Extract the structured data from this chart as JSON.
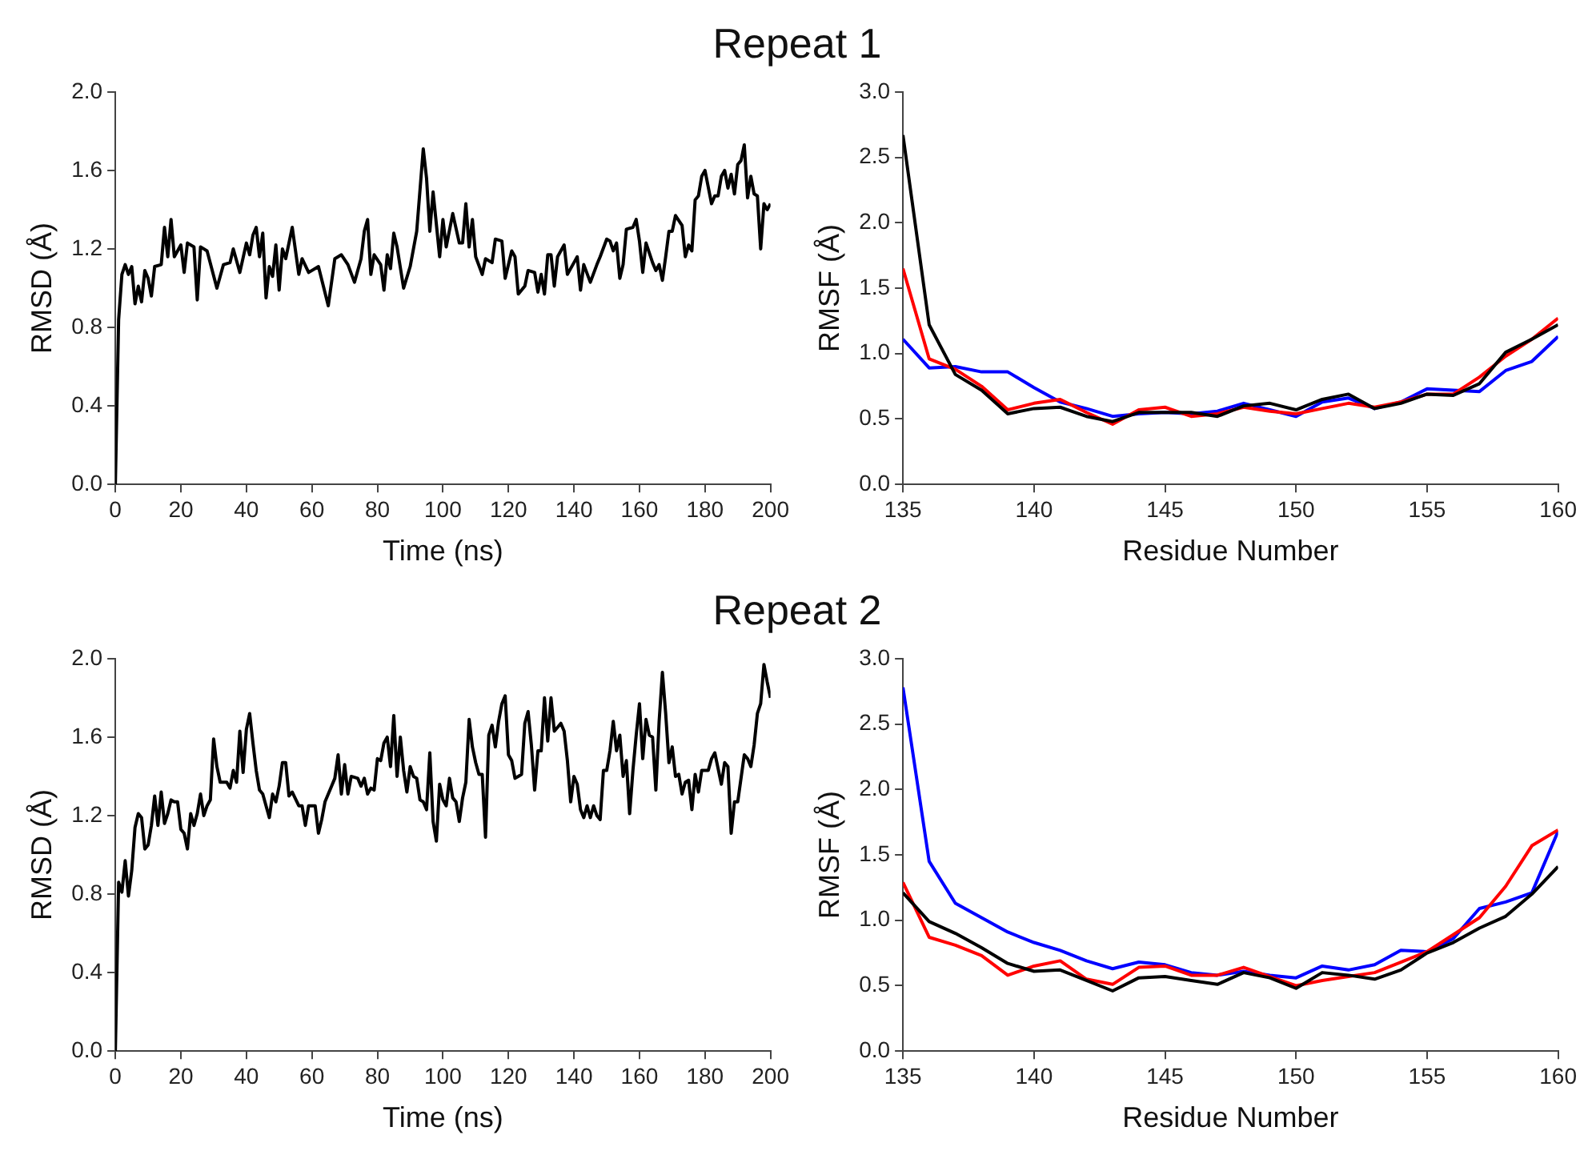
{
  "chart_data": [
    {
      "type": "line",
      "title": "Repeat 1",
      "xlabel": "Time (ns)",
      "ylabel": "RMSD (Å)",
      "xlim": [
        0,
        200
      ],
      "xticks": [
        0,
        20,
        40,
        60,
        80,
        100,
        120,
        140,
        160,
        180,
        200
      ],
      "ylim": [
        0,
        2.0
      ],
      "yticks": [
        {
          "value": 0,
          "label": "0.0"
        },
        0.4,
        0.8,
        1.2,
        1.6,
        {
          "value": 2,
          "label": "2.0"
        }
      ],
      "grid": false,
      "legend": false,
      "marker": "none",
      "color": "#000000",
      "x": [
        0,
        1,
        2,
        3,
        4,
        5,
        6,
        7,
        8,
        9,
        10,
        11,
        12,
        14,
        15,
        16,
        17,
        18,
        20,
        21,
        22,
        24,
        25,
        26,
        28,
        31,
        33,
        35,
        36,
        38,
        40,
        41,
        42,
        43,
        44,
        45,
        46,
        47,
        48,
        49,
        50,
        51,
        52,
        54,
        56,
        57,
        59,
        62,
        65,
        67,
        69,
        71,
        73,
        75,
        76,
        77,
        78,
        79,
        81,
        82,
        83,
        84,
        85,
        86,
        88,
        90,
        92,
        94,
        95,
        96,
        97,
        99,
        100,
        101,
        103,
        105,
        106,
        107,
        108,
        109,
        110,
        112,
        113,
        115,
        116,
        118,
        119,
        121,
        122,
        123,
        125,
        126,
        128,
        129,
        130,
        131,
        132,
        133,
        134,
        135,
        137,
        138,
        140,
        141,
        142,
        143,
        145,
        147,
        148,
        150,
        151,
        152,
        153,
        154,
        155,
        156,
        158,
        159,
        160,
        161,
        162,
        164,
        165,
        166,
        167,
        168,
        169,
        170,
        171,
        173,
        174,
        175,
        176,
        177,
        178,
        179,
        180,
        182,
        183,
        184,
        185,
        186,
        187,
        188,
        189,
        190,
        191,
        192,
        193,
        194,
        195,
        196,
        197,
        198,
        199,
        200
      ],
      "values": [
        0,
        0.84,
        1.07,
        1.12,
        1.07,
        1.11,
        0.92,
        1.01,
        0.93,
        1.09,
        1.05,
        0.96,
        1.11,
        1.12,
        1.31,
        1.16,
        1.35,
        1.16,
        1.22,
        1.08,
        1.23,
        1.21,
        0.94,
        1.21,
        1.19,
        1.0,
        1.12,
        1.13,
        1.2,
        1.08,
        1.23,
        1.17,
        1.27,
        1.31,
        1.16,
        1.28,
        0.95,
        1.11,
        1.06,
        1.22,
        0.99,
        1.2,
        1.15,
        1.31,
        1.07,
        1.15,
        1.08,
        1.11,
        0.91,
        1.15,
        1.17,
        1.12,
        1.03,
        1.15,
        1.29,
        1.35,
        1.07,
        1.17,
        1.12,
        0.99,
        1.17,
        1.1,
        1.28,
        1.21,
        1.0,
        1.11,
        1.29,
        1.71,
        1.56,
        1.29,
        1.49,
        1.16,
        1.35,
        1.21,
        1.38,
        1.23,
        1.23,
        1.43,
        1.21,
        1.35,
        1.16,
        1.07,
        1.15,
        1.13,
        1.25,
        1.24,
        1.05,
        1.19,
        1.16,
        0.97,
        1.01,
        1.09,
        1.08,
        0.98,
        1.07,
        0.97,
        1.17,
        1.17,
        1.01,
        1.16,
        1.22,
        1.07,
        1.13,
        1.16,
        0.99,
        1.12,
        1.03,
        1.12,
        1.16,
        1.25,
        1.24,
        1.19,
        1.23,
        1.05,
        1.12,
        1.3,
        1.31,
        1.35,
        1.24,
        1.08,
        1.23,
        1.13,
        1.09,
        1.12,
        1.04,
        1.16,
        1.29,
        1.29,
        1.37,
        1.32,
        1.16,
        1.22,
        1.19,
        1.45,
        1.47,
        1.57,
        1.6,
        1.43,
        1.47,
        1.47,
        1.57,
        1.6,
        1.51,
        1.58,
        1.48,
        1.63,
        1.65,
        1.73,
        1.46,
        1.57,
        1.48,
        1.47,
        1.2,
        1.43,
        1.4,
        1.43
      ]
    },
    {
      "type": "line",
      "xlabel": "Residue Number",
      "ylabel": "RMSF (Å)",
      "xlim": [
        135,
        160
      ],
      "xticks": [
        135,
        140,
        145,
        150,
        155,
        160
      ],
      "ylim": [
        0,
        3.0
      ],
      "yticks": [
        {
          "value": 0,
          "label": "0.0"
        },
        0.5,
        {
          "value": 1,
          "label": "1.0"
        },
        1.5,
        {
          "value": 2,
          "label": "2.0"
        },
        2.5,
        {
          "value": 3,
          "label": "3.0"
        }
      ],
      "grid": false,
      "legend": false,
      "marker": "none",
      "x": [
        135,
        136,
        137,
        138,
        139,
        140,
        141,
        142,
        143,
        144,
        145,
        146,
        147,
        148,
        149,
        150,
        151,
        152,
        153,
        154,
        155,
        156,
        157,
        158,
        159,
        160
      ],
      "series": [
        {
          "color": "#000000",
          "values": [
            2.67,
            1.22,
            0.84,
            0.72,
            0.54,
            0.58,
            0.59,
            0.52,
            0.48,
            0.55,
            0.55,
            0.55,
            0.52,
            0.6,
            0.62,
            0.57,
            0.65,
            0.69,
            0.58,
            0.62,
            0.69,
            0.68,
            0.77,
            1.01,
            1.11,
            1.22
          ]
        },
        {
          "color": "#ff0000",
          "values": [
            1.65,
            0.96,
            0.88,
            0.75,
            0.57,
            0.62,
            0.65,
            0.55,
            0.46,
            0.57,
            0.59,
            0.52,
            0.54,
            0.59,
            0.56,
            0.54,
            0.58,
            0.62,
            0.59,
            0.63,
            0.69,
            0.69,
            0.82,
            0.98,
            1.11,
            1.27
          ]
        },
        {
          "color": "#0000ff",
          "values": [
            1.11,
            0.89,
            0.9,
            0.86,
            0.86,
            0.74,
            0.63,
            0.58,
            0.52,
            0.54,
            0.55,
            0.54,
            0.56,
            0.62,
            0.57,
            0.52,
            0.63,
            0.66,
            0.58,
            0.63,
            0.73,
            0.72,
            0.71,
            0.87,
            0.94,
            1.13
          ]
        }
      ]
    },
    {
      "type": "line",
      "title": "Repeat 2",
      "xlabel": "Time (ns)",
      "ylabel": "RMSD (Å)",
      "xlim": [
        0,
        200
      ],
      "xticks": [
        0,
        20,
        40,
        60,
        80,
        100,
        120,
        140,
        160,
        180,
        200
      ],
      "ylim": [
        0,
        2.0
      ],
      "yticks": [
        {
          "value": 0,
          "label": "0.0"
        },
        0.4,
        0.8,
        1.2,
        1.6,
        {
          "value": 2,
          "label": "2.0"
        }
      ],
      "grid": false,
      "legend": false,
      "marker": "none",
      "color": "#000000",
      "x": [
        0,
        1,
        2,
        3,
        4,
        5,
        6,
        7,
        8,
        9,
        10,
        11,
        12,
        13,
        14,
        15,
        16,
        17,
        18,
        19,
        20,
        21,
        22,
        23,
        24,
        25,
        26,
        27,
        28,
        29,
        30,
        31,
        32,
        34,
        35,
        36,
        37,
        38,
        39,
        40,
        41,
        42,
        43,
        44,
        45,
        46,
        47,
        48,
        49,
        50,
        51,
        52,
        53,
        54,
        56,
        57,
        58,
        59,
        61,
        62,
        63,
        64,
        66,
        67,
        68,
        69,
        70,
        71,
        72,
        74,
        75,
        76,
        77,
        78,
        79,
        80,
        81,
        82,
        83,
        84,
        85,
        86,
        87,
        88,
        89,
        90,
        91,
        92,
        93,
        94,
        95,
        96,
        97,
        98,
        99,
        100,
        101,
        102,
        103,
        104,
        105,
        106,
        107,
        108,
        109,
        110,
        111,
        112,
        113,
        114,
        115,
        116,
        117,
        118,
        119,
        120,
        121,
        122,
        123,
        124,
        125,
        126,
        127,
        128,
        129,
        130,
        131,
        132,
        133,
        134,
        136,
        137,
        138,
        139,
        140,
        141,
        142,
        143,
        144,
        145,
        146,
        147,
        148,
        149,
        150,
        151,
        152,
        153,
        154,
        155,
        156,
        157,
        158,
        159,
        160,
        161,
        162,
        163,
        164,
        165,
        166,
        167,
        168,
        169,
        170,
        171,
        172,
        173,
        174,
        175,
        176,
        177,
        178,
        179,
        180,
        181,
        182,
        183,
        184,
        185,
        186,
        187,
        188,
        189,
        190,
        191,
        192,
        193,
        194,
        195,
        196,
        197,
        198,
        199,
        200
      ],
      "values": [
        0,
        0.86,
        0.81,
        0.97,
        0.79,
        0.92,
        1.14,
        1.21,
        1.19,
        1.03,
        1.05,
        1.15,
        1.3,
        1.15,
        1.32,
        1.16,
        1.21,
        1.28,
        1.27,
        1.27,
        1.13,
        1.11,
        1.03,
        1.21,
        1.15,
        1.21,
        1.31,
        1.2,
        1.25,
        1.28,
        1.59,
        1.45,
        1.37,
        1.37,
        1.34,
        1.43,
        1.37,
        1.63,
        1.42,
        1.64,
        1.72,
        1.57,
        1.43,
        1.33,
        1.31,
        1.25,
        1.19,
        1.31,
        1.27,
        1.35,
        1.47,
        1.47,
        1.3,
        1.32,
        1.25,
        1.25,
        1.15,
        1.25,
        1.25,
        1.11,
        1.18,
        1.27,
        1.35,
        1.39,
        1.51,
        1.31,
        1.46,
        1.31,
        1.4,
        1.39,
        1.35,
        1.39,
        1.31,
        1.34,
        1.33,
        1.49,
        1.48,
        1.57,
        1.6,
        1.45,
        1.71,
        1.4,
        1.6,
        1.43,
        1.32,
        1.45,
        1.4,
        1.39,
        1.28,
        1.27,
        1.23,
        1.52,
        1.17,
        1.07,
        1.36,
        1.28,
        1.25,
        1.39,
        1.29,
        1.27,
        1.17,
        1.29,
        1.37,
        1.69,
        1.55,
        1.47,
        1.41,
        1.41,
        1.09,
        1.61,
        1.66,
        1.55,
        1.68,
        1.77,
        1.81,
        1.51,
        1.48,
        1.39,
        1.4,
        1.41,
        1.67,
        1.73,
        1.56,
        1.33,
        1.53,
        1.53,
        1.8,
        1.58,
        1.8,
        1.63,
        1.67,
        1.63,
        1.48,
        1.27,
        1.4,
        1.36,
        1.23,
        1.19,
        1.25,
        1.19,
        1.25,
        1.2,
        1.18,
        1.43,
        1.43,
        1.53,
        1.68,
        1.53,
        1.61,
        1.4,
        1.48,
        1.21,
        1.43,
        1.61,
        1.77,
        1.49,
        1.69,
        1.61,
        1.6,
        1.33,
        1.68,
        1.93,
        1.72,
        1.47,
        1.55,
        1.4,
        1.41,
        1.31,
        1.37,
        1.38,
        1.23,
        1.41,
        1.32,
        1.43,
        1.43,
        1.43,
        1.49,
        1.52,
        1.44,
        1.36,
        1.47,
        1.45,
        1.11,
        1.27,
        1.27,
        1.39,
        1.51,
        1.49,
        1.45,
        1.56,
        1.72,
        1.77,
        1.97,
        1.88,
        1.8
      ]
    },
    {
      "type": "line",
      "xlabel": "Residue Number",
      "ylabel": "RMSF (Å)",
      "xlim": [
        135,
        160
      ],
      "xticks": [
        135,
        140,
        145,
        150,
        155,
        160
      ],
      "ylim": [
        0,
        3.0
      ],
      "yticks": [
        {
          "value": 0,
          "label": "0.0"
        },
        0.5,
        {
          "value": 1,
          "label": "1.0"
        },
        1.5,
        {
          "value": 2,
          "label": "2.0"
        },
        2.5,
        {
          "value": 3,
          "label": "3.0"
        }
      ],
      "grid": false,
      "legend": false,
      "marker": "none",
      "x": [
        135,
        136,
        137,
        138,
        139,
        140,
        141,
        142,
        143,
        144,
        145,
        146,
        147,
        148,
        149,
        150,
        151,
        152,
        153,
        154,
        155,
        156,
        157,
        158,
        159,
        160
      ],
      "series": [
        {
          "color": "#000000",
          "values": [
            1.21,
            0.99,
            0.9,
            0.79,
            0.67,
            0.61,
            0.62,
            0.54,
            0.46,
            0.56,
            0.57,
            0.54,
            0.51,
            0.6,
            0.56,
            0.48,
            0.6,
            0.58,
            0.55,
            0.62,
            0.75,
            0.83,
            0.94,
            1.03,
            1.2,
            1.41
          ]
        },
        {
          "color": "#ff0000",
          "values": [
            1.29,
            0.87,
            0.81,
            0.73,
            0.58,
            0.65,
            0.69,
            0.55,
            0.51,
            0.64,
            0.65,
            0.58,
            0.58,
            0.64,
            0.57,
            0.5,
            0.54,
            0.57,
            0.6,
            0.68,
            0.76,
            0.89,
            1.02,
            1.26,
            1.57,
            1.69
          ]
        },
        {
          "color": "#0000ff",
          "values": [
            2.78,
            1.45,
            1.13,
            1.02,
            0.91,
            0.83,
            0.77,
            0.69,
            0.63,
            0.68,
            0.66,
            0.6,
            0.58,
            0.61,
            0.58,
            0.56,
            0.65,
            0.62,
            0.66,
            0.77,
            0.76,
            0.86,
            1.09,
            1.14,
            1.21,
            1.68
          ]
        }
      ]
    }
  ]
}
